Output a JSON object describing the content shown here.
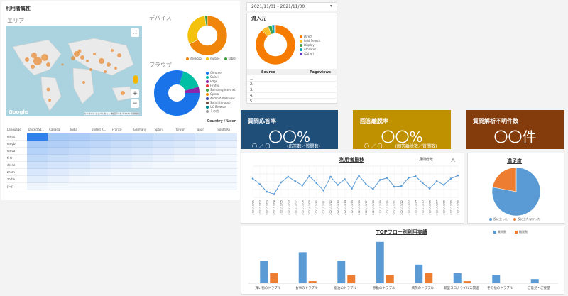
{
  "left_report": {
    "title": "利用者属性",
    "area_label": "エリア",
    "device_label": "デバイス",
    "browser_label": "ブラウザ",
    "map_footer": "キーボード ショートカット 地図データ ©2021 利用規約",
    "zoom_in": "+",
    "zoom_out": "−",
    "device_legend": [
      "desktop",
      "mobile",
      "tablet"
    ],
    "browser_legend": [
      "Chrome",
      "Safari",
      "Edge",
      "Firefox",
      "Samsung Internet",
      "Opera",
      "Android Webview",
      "Safari (in-app)",
      "UC Browser",
      "その他"
    ],
    "table_header_right": "Country / User",
    "table_columns": [
      "Language",
      "United St...",
      "Canada",
      "India",
      "United K...",
      "France",
      "Germany",
      "Spain",
      "Taiwan",
      "Japan",
      "South Ko"
    ],
    "table_rows": [
      "en-us",
      "en-gb",
      "en-ca",
      "fr-fr",
      "de-de",
      "zh-cn",
      "zh-tw",
      "ja-jp"
    ]
  },
  "date_picker": {
    "range": "2021/11/01 - 2021/11/30",
    "icon": "chevron-down-icon"
  },
  "inflow": {
    "title": "流入元",
    "legend": [
      "Direct",
      "Paid Search",
      "Display",
      "Affiliates",
      "(Other)"
    ],
    "col_source": "Source",
    "col_pageviews": "Pageviews",
    "rows": [
      "1.",
      "2.",
      "3.",
      "4.",
      "5."
    ]
  },
  "kpis": [
    {
      "title": "質問応答率",
      "value": "〇〇%",
      "left": "〇 ／ 〇",
      "sub": "(応答数／質問数)",
      "color": "#1f4e79"
    },
    {
      "title": "回答離脱率",
      "value": "〇〇%",
      "left": "〇 ／ 〇",
      "sub": "(回答離脱数／質問数)",
      "color": "#bf9000"
    },
    {
      "title": "質問解析不明件数",
      "value": "〇〇件",
      "left": "",
      "sub": "",
      "color": "#843c0c"
    }
  ],
  "usage_chart": {
    "title": "利用者推移",
    "series_label": "月間総数",
    "unit": "人"
  },
  "satisfaction": {
    "title": "満足度",
    "legend": [
      "役に立った",
      "役に立たなかった"
    ],
    "colors": [
      "#5b9bd5",
      "#ed7d31"
    ]
  },
  "top_flow": {
    "title": "TOPフロー別利用実績",
    "legend": [
      "質問数",
      "離脱数"
    ],
    "colors": [
      "#5b9bd5",
      "#ed7d31"
    ]
  },
  "chart_data": [
    {
      "type": "line",
      "title": "利用者推移",
      "series_label": "月間総数",
      "x": [
        "2021/11/01",
        "2021/11/02",
        "2021/11/03",
        "2021/11/04",
        "2021/11/05",
        "2021/11/06",
        "2021/11/07",
        "2021/11/08",
        "2021/11/09",
        "2021/11/10",
        "2021/11/11",
        "2021/11/12",
        "2021/11/13",
        "2021/11/14",
        "2021/11/15",
        "2021/11/16",
        "2021/11/17",
        "2021/11/18",
        "2021/11/19",
        "2021/11/20",
        "2021/11/21",
        "2021/11/22",
        "2021/11/23",
        "2021/11/24",
        "2021/11/25",
        "2021/11/26",
        "2021/11/27",
        "2021/11/28",
        "2021/11/29",
        "2021/11/30"
      ],
      "values": [
        60,
        42,
        18,
        10,
        48,
        66,
        52,
        38,
        68,
        46,
        22,
        66,
        40,
        58,
        28,
        70,
        42,
        26,
        56,
        62,
        34,
        36,
        62,
        68,
        46,
        28,
        52,
        40,
        60,
        70
      ],
      "ylim": [
        0,
        100
      ]
    },
    {
      "type": "pie",
      "title": "満足度",
      "labels": [
        "役に立った",
        "役に立たなかった"
      ],
      "values": [
        78,
        22
      ]
    },
    {
      "type": "bar",
      "title": "TOPフロー別利用実績",
      "categories": [
        "買い物のトラブル",
        "食事のトラブル",
        "宿泊のトラブル",
        "移動のトラブル",
        "病院のトラブル",
        "新型コロナウイルス関連",
        "その他のトラブル",
        "ご意見・ご要望"
      ],
      "series": [
        {
          "name": "質問数",
          "values": [
            55,
            75,
            55,
            100,
            45,
            25,
            20,
            10
          ]
        },
        {
          "name": "離脱数",
          "values": [
            25,
            5,
            20,
            20,
            25,
            5,
            0,
            0
          ]
        }
      ],
      "ylim": [
        0,
        110
      ]
    },
    {
      "type": "pie",
      "title": "デバイス",
      "labels": [
        "desktop",
        "mobile",
        "tablet"
      ],
      "values": [
        68,
        30,
        2
      ]
    },
    {
      "type": "pie",
      "title": "流入元",
      "labels": [
        "Direct",
        "Paid Search",
        "Display",
        "Affiliates",
        "(Other)"
      ],
      "values": [
        88,
        6,
        3,
        2,
        1
      ]
    }
  ]
}
